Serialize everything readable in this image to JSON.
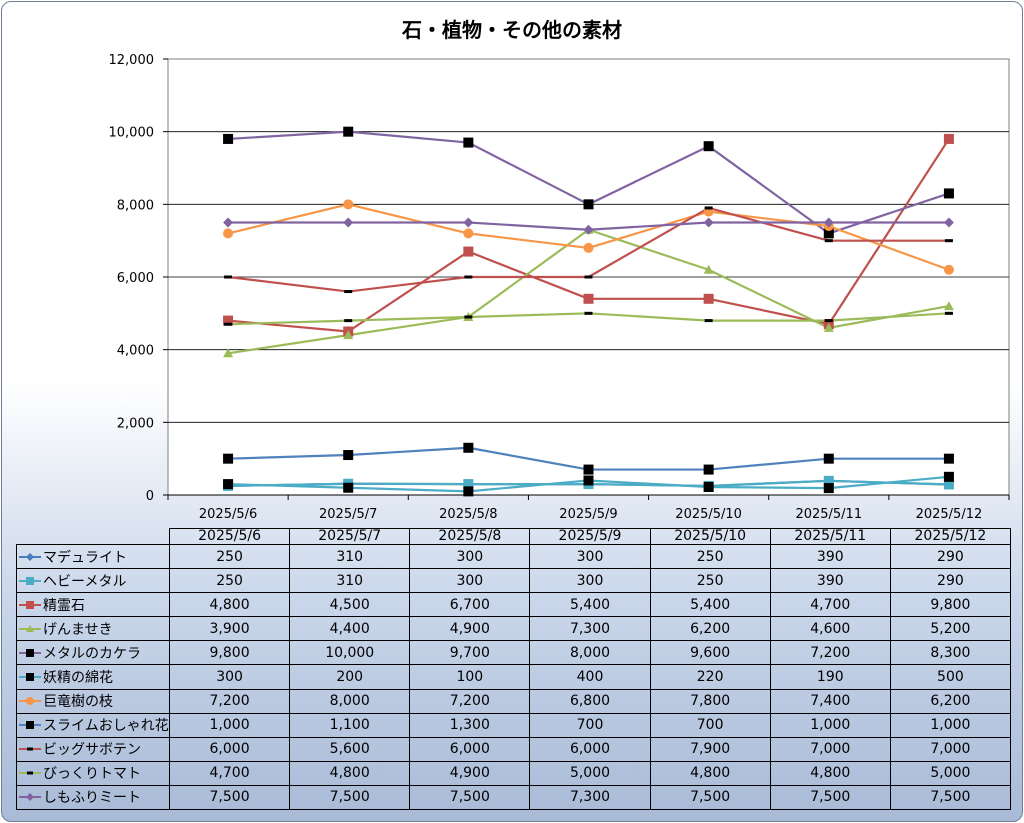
{
  "title": "石・植物・その他の素材",
  "chart_data": {
    "type": "line",
    "title": "石・植物・その他の素材",
    "categories": [
      "2025/5/6",
      "2025/5/7",
      "2025/5/8",
      "2025/5/9",
      "2025/5/10",
      "2025/5/11",
      "2025/5/12"
    ],
    "ylim": [
      0,
      12000
    ],
    "yticks": [
      "0",
      "2,000",
      "4,000",
      "6,000",
      "8,000",
      "10,000",
      "12,000"
    ],
    "ytick_values": [
      0,
      2000,
      4000,
      6000,
      8000,
      10000,
      12000
    ],
    "grid": true,
    "legend": "data-table",
    "series": [
      {
        "name": "マデュライト",
        "color": "#4a7ebb",
        "marker": "diamond",
        "values": [
          250,
          310,
          300,
          300,
          250,
          390,
          290
        ],
        "labels": [
          "250",
          "310",
          "300",
          "300",
          "250",
          "390",
          "290"
        ]
      },
      {
        "name": "ヘビーメタル",
        "color": "#4bacc6",
        "marker": "square",
        "values": [
          250,
          310,
          300,
          300,
          250,
          390,
          290
        ],
        "labels": [
          "250",
          "310",
          "300",
          "300",
          "250",
          "390",
          "290"
        ]
      },
      {
        "name": "精霊石",
        "color": "#c0504d",
        "marker": "square",
        "values": [
          4800,
          4500,
          6700,
          5400,
          5400,
          4700,
          9800
        ],
        "labels": [
          "4,800",
          "4,500",
          "6,700",
          "5,400",
          "5,400",
          "4,700",
          "9,800"
        ]
      },
      {
        "name": "げんませき",
        "color": "#9bbb59",
        "marker": "triangle",
        "values": [
          3900,
          4400,
          4900,
          7300,
          6200,
          4600,
          5200
        ],
        "labels": [
          "3,900",
          "4,400",
          "4,900",
          "7,300",
          "6,200",
          "4,600",
          "5,200"
        ]
      },
      {
        "name": "メタルのカケラ",
        "color": "#8064a2",
        "marker": "blacksquare",
        "values": [
          9800,
          10000,
          9700,
          8000,
          9600,
          7200,
          8300
        ],
        "labels": [
          "9,800",
          "10,000",
          "9,700",
          "8,000",
          "9,600",
          "7,200",
          "8,300"
        ]
      },
      {
        "name": "妖精の綿花",
        "color": "#4bacc6",
        "marker": "blacksquare",
        "values": [
          300,
          200,
          100,
          400,
          220,
          190,
          500
        ],
        "labels": [
          "300",
          "200",
          "100",
          "400",
          "220",
          "190",
          "500"
        ]
      },
      {
        "name": "巨竜樹の枝",
        "color": "#f79646",
        "marker": "circle",
        "values": [
          7200,
          8000,
          7200,
          6800,
          7800,
          7400,
          6200
        ],
        "labels": [
          "7,200",
          "8,000",
          "7,200",
          "6,800",
          "7,800",
          "7,400",
          "6,200"
        ]
      },
      {
        "name": "スライムおしゃれ花",
        "color": "#4f81bd",
        "marker": "blacksquare",
        "values": [
          1000,
          1100,
          1300,
          700,
          700,
          1000,
          1000
        ],
        "labels": [
          "1,000",
          "1,100",
          "1,300",
          "700",
          "700",
          "1,000",
          "1,000"
        ]
      },
      {
        "name": "ビッグサボテン",
        "color": "#c0504d",
        "marker": "dash",
        "values": [
          6000,
          5600,
          6000,
          6000,
          7900,
          7000,
          7000
        ],
        "labels": [
          "6,000",
          "5,600",
          "6,000",
          "6,000",
          "7,900",
          "7,000",
          "7,000"
        ]
      },
      {
        "name": "びっくりトマト",
        "color": "#9bbb59",
        "marker": "dash",
        "values": [
          4700,
          4800,
          4900,
          5000,
          4800,
          4800,
          5000
        ],
        "labels": [
          "4,700",
          "4,800",
          "4,900",
          "5,000",
          "4,800",
          "4,800",
          "5,000"
        ]
      },
      {
        "name": "しもふりミート",
        "color": "#8064a2",
        "marker": "diamond",
        "values": [
          7500,
          7500,
          7500,
          7300,
          7500,
          7500,
          7500
        ],
        "labels": [
          "7,500",
          "7,500",
          "7,500",
          "7,300",
          "7,500",
          "7,500",
          "7,500"
        ]
      }
    ]
  }
}
